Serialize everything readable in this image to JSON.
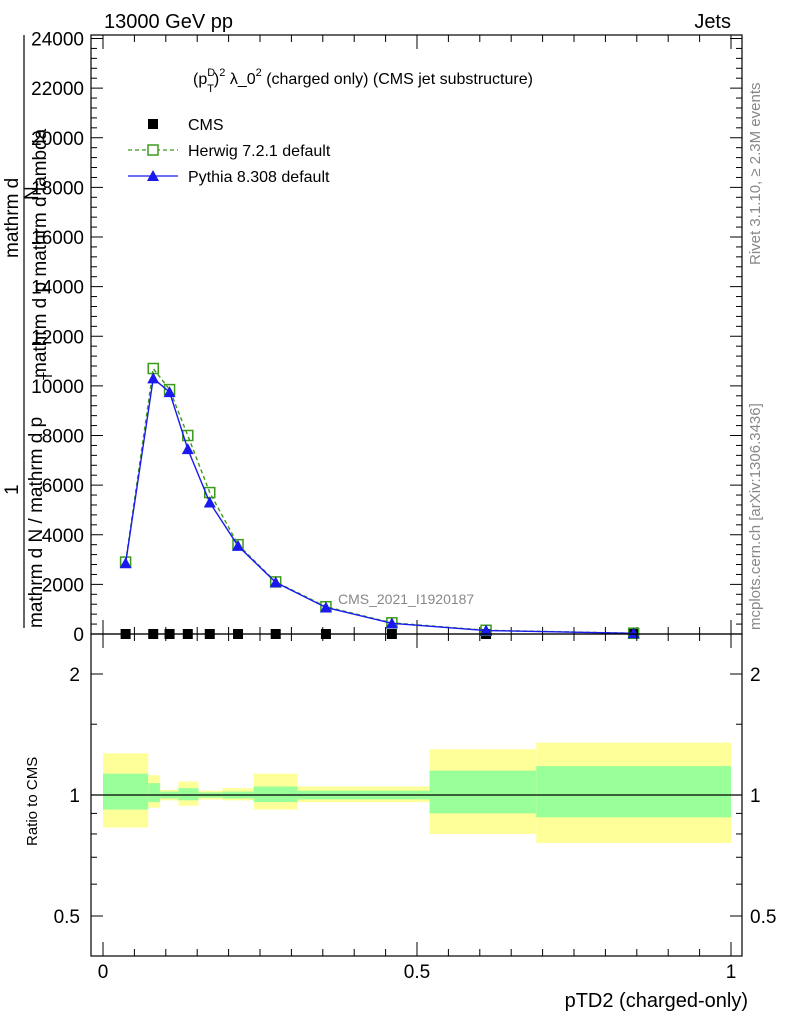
{
  "header": {
    "left": "13000 GeV pp",
    "right": "Jets"
  },
  "side_text": {
    "rivet": "Rivet 3.1.10, ≥ 2.3M events",
    "mcplots": "mcplots.cern.ch [arXiv:1306.3436]"
  },
  "chart_data": [
    {
      "type": "line",
      "title": "(p_T^D)^2 λ_0^2 (charged only) (CMS jet substructure)",
      "title_parts": {
        "p": "(p",
        "sup_D": "D",
        "sub_T": "T",
        "close": ")",
        "sup_2": "2",
        "lam": " λ_0",
        "sup2b": "2",
        "rest": " (charged only) (CMS jet substructure)"
      },
      "ylabel": {
        "numer1": "mathrm d",
        "numer2": "N",
        "numer3": "mathrm d p mathrm d lambda",
        "numer_sub": "T",
        "one": "1",
        "denom": "mathrm d N / mathrm d p"
      },
      "watermark": "CMS_2021_I1920187",
      "xlim": [
        0,
        1
      ],
      "ylim": [
        0,
        24000
      ],
      "yticks": [
        0,
        2000,
        4000,
        6000,
        8000,
        10000,
        12000,
        14000,
        16000,
        18000,
        20000,
        22000,
        24000
      ],
      "ytick_labels": [
        "0",
        "2000",
        "4000",
        "6000",
        "8000",
        "10000",
        "12000",
        "14000",
        "16000",
        "18000",
        "20000",
        "22000",
        "24000"
      ],
      "legend_position": "top-left",
      "series": [
        {
          "name": "CMS",
          "style": "points",
          "color": "#000000",
          "marker": "square-filled",
          "x": [
            0.036,
            0.08,
            0.106,
            0.135,
            0.17,
            0.215,
            0.275,
            0.355,
            0.46,
            0.61,
            0.845
          ],
          "values": [
            0,
            0,
            0,
            0,
            0,
            0,
            0,
            0,
            0,
            0,
            0
          ]
        },
        {
          "name": "Herwig 7.2.1 default",
          "style": "dashed",
          "color": "#3a9a1a",
          "marker": "square-open",
          "x": [
            0.036,
            0.08,
            0.106,
            0.135,
            0.17,
            0.215,
            0.275,
            0.355,
            0.46,
            0.61,
            0.845
          ],
          "values": [
            2900,
            10700,
            9850,
            8000,
            5700,
            3600,
            2100,
            1100,
            450,
            150,
            30
          ]
        },
        {
          "name": "Pythia 8.308 default",
          "style": "solid",
          "color": "#1a1aee",
          "marker": "triangle-filled",
          "x": [
            0.036,
            0.08,
            0.106,
            0.135,
            0.17,
            0.215,
            0.275,
            0.355,
            0.46,
            0.61,
            0.845
          ],
          "values": [
            2850,
            10300,
            9750,
            7450,
            5300,
            3550,
            2080,
            1070,
            430,
            140,
            28
          ]
        }
      ]
    },
    {
      "type": "area",
      "ylabel": "Ratio to CMS",
      "xlabel": "pTD2 (charged-only)",
      "xlim": [
        0,
        1
      ],
      "ylim": [
        0.38,
        2.35
      ],
      "log_y": true,
      "yticks": [
        0.5,
        1,
        2
      ],
      "ytick_labels": [
        "0.5",
        "1",
        "2"
      ],
      "xticks": [
        0,
        0.5,
        1
      ],
      "xtick_labels": [
        "0",
        "0.5",
        "1"
      ],
      "reference_line": 1,
      "bands": {
        "edges": [
          0,
          0.072,
          0.091,
          0.12,
          0.152,
          0.19,
          0.24,
          0.31,
          0.41,
          0.52,
          0.69,
          1.0
        ],
        "inner_color": "#99ff99",
        "outer_color": "#ffff99",
        "inner": [
          [
            0.92,
            1.13
          ],
          [
            0.96,
            1.07
          ],
          [
            0.98,
            1.02
          ],
          [
            0.97,
            1.04
          ],
          [
            0.985,
            1.015
          ],
          [
            0.98,
            1.02
          ],
          [
            0.96,
            1.05
          ],
          [
            0.975,
            1.025
          ],
          [
            0.975,
            1.025
          ],
          [
            0.9,
            1.15
          ],
          [
            0.88,
            1.18
          ]
        ],
        "outer": [
          [
            0.83,
            1.27
          ],
          [
            0.93,
            1.12
          ],
          [
            0.97,
            1.03
          ],
          [
            0.94,
            1.08
          ],
          [
            0.975,
            1.025
          ],
          [
            0.97,
            1.04
          ],
          [
            0.92,
            1.13
          ],
          [
            0.96,
            1.05
          ],
          [
            0.96,
            1.05
          ],
          [
            0.8,
            1.3
          ],
          [
            0.76,
            1.35
          ]
        ]
      }
    }
  ]
}
